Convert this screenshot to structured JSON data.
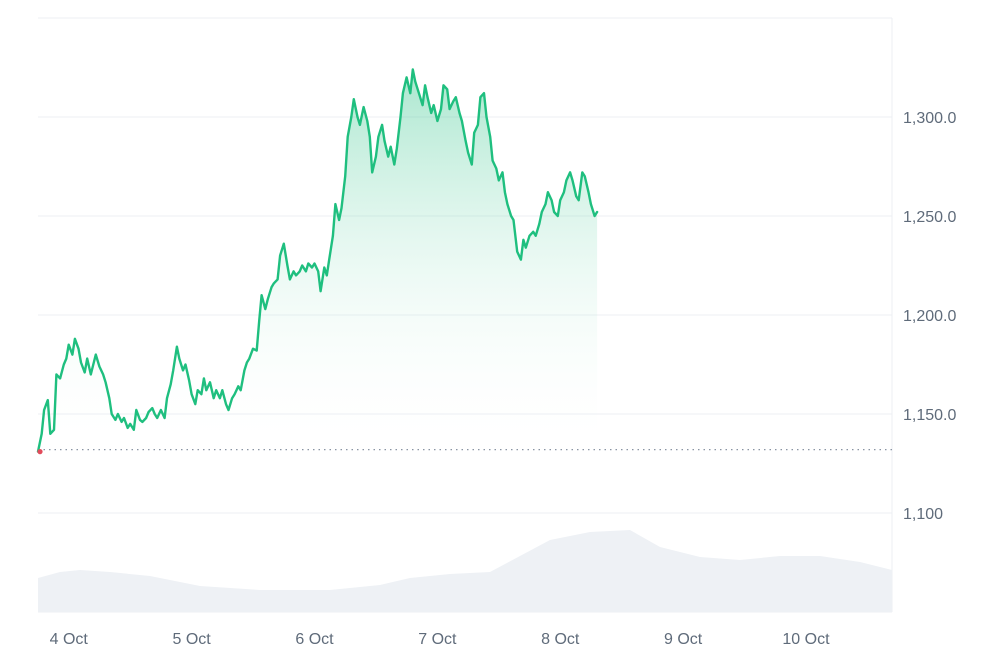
{
  "colors": {
    "line": "#1fbf7f",
    "area_top": "#1fbf7f",
    "area_bottom": "#ffffff",
    "grid": "#eceff3",
    "volume": "#eef1f5",
    "start_dot": "#e24b5b",
    "baseline": "#8a94a3",
    "tick_text": "#5f6b7a"
  },
  "chart_data": {
    "type": "area",
    "title": "",
    "xlabel": "",
    "ylabel": "",
    "x_tick_labels": [
      "4 Oct",
      "5 Oct",
      "6 Oct",
      "7 Oct",
      "8 Oct",
      "9 Oct",
      "10 Oct"
    ],
    "x_range_days": [
      3.75,
      10.7
    ],
    "y_tick_labels": [
      "1,300.0",
      "1,250.0",
      "1,200.0",
      "1,150.0",
      "1,100"
    ],
    "y_tick_values": [
      1300,
      1250,
      1200,
      1150,
      1100
    ],
    "ylim": [
      1050,
      1350
    ],
    "grid": true,
    "baseline": 1132,
    "series": [
      {
        "values": [
          [
            3.75,
            1131
          ],
          [
            3.78,
            1140
          ],
          [
            3.8,
            1152
          ],
          [
            3.83,
            1157
          ],
          [
            3.85,
            1140
          ],
          [
            3.88,
            1142
          ],
          [
            3.9,
            1170
          ],
          [
            3.93,
            1168
          ],
          [
            3.96,
            1175
          ],
          [
            3.98,
            1178
          ],
          [
            4.0,
            1185
          ],
          [
            4.03,
            1180
          ],
          [
            4.05,
            1188
          ],
          [
            4.08,
            1183
          ],
          [
            4.1,
            1176
          ],
          [
            4.13,
            1171
          ],
          [
            4.15,
            1178
          ],
          [
            4.18,
            1170
          ],
          [
            4.2,
            1175
          ],
          [
            4.22,
            1180
          ],
          [
            4.25,
            1174
          ],
          [
            4.28,
            1170
          ],
          [
            4.3,
            1166
          ],
          [
            4.33,
            1158
          ],
          [
            4.35,
            1150
          ],
          [
            4.38,
            1147
          ],
          [
            4.4,
            1150
          ],
          [
            4.43,
            1146
          ],
          [
            4.45,
            1148
          ],
          [
            4.48,
            1143
          ],
          [
            4.5,
            1145
          ],
          [
            4.53,
            1142
          ],
          [
            4.55,
            1152
          ],
          [
            4.58,
            1147
          ],
          [
            4.6,
            1146
          ],
          [
            4.63,
            1148
          ],
          [
            4.65,
            1151
          ],
          [
            4.68,
            1153
          ],
          [
            4.7,
            1150
          ],
          [
            4.72,
            1148
          ],
          [
            4.75,
            1152
          ],
          [
            4.78,
            1148
          ],
          [
            4.8,
            1158
          ],
          [
            4.83,
            1165
          ],
          [
            4.85,
            1172
          ],
          [
            4.88,
            1184
          ],
          [
            4.9,
            1178
          ],
          [
            4.93,
            1172
          ],
          [
            4.95,
            1175
          ],
          [
            4.98,
            1167
          ],
          [
            5.0,
            1160
          ],
          [
            5.03,
            1155
          ],
          [
            5.05,
            1162
          ],
          [
            5.08,
            1160
          ],
          [
            5.1,
            1168
          ],
          [
            5.12,
            1162
          ],
          [
            5.15,
            1166
          ],
          [
            5.18,
            1158
          ],
          [
            5.2,
            1162
          ],
          [
            5.23,
            1158
          ],
          [
            5.25,
            1162
          ],
          [
            5.28,
            1155
          ],
          [
            5.3,
            1152
          ],
          [
            5.33,
            1158
          ],
          [
            5.35,
            1160
          ],
          [
            5.38,
            1164
          ],
          [
            5.4,
            1162
          ],
          [
            5.43,
            1172
          ],
          [
            5.45,
            1176
          ],
          [
            5.47,
            1178
          ],
          [
            5.5,
            1183
          ],
          [
            5.53,
            1182
          ],
          [
            5.55,
            1197
          ],
          [
            5.57,
            1210
          ],
          [
            5.6,
            1203
          ],
          [
            5.62,
            1208
          ],
          [
            5.65,
            1214
          ],
          [
            5.67,
            1216
          ],
          [
            5.7,
            1218
          ],
          [
            5.72,
            1230
          ],
          [
            5.75,
            1236
          ],
          [
            5.78,
            1225
          ],
          [
            5.8,
            1218
          ],
          [
            5.83,
            1222
          ],
          [
            5.85,
            1220
          ],
          [
            5.88,
            1222
          ],
          [
            5.9,
            1225
          ],
          [
            5.93,
            1222
          ],
          [
            5.95,
            1226
          ],
          [
            5.98,
            1224
          ],
          [
            6.0,
            1226
          ],
          [
            6.03,
            1222
          ],
          [
            6.05,
            1212
          ],
          [
            6.08,
            1224
          ],
          [
            6.1,
            1220
          ],
          [
            6.12,
            1228
          ],
          [
            6.15,
            1240
          ],
          [
            6.17,
            1256
          ],
          [
            6.2,
            1248
          ],
          [
            6.22,
            1254
          ],
          [
            6.25,
            1270
          ],
          [
            6.27,
            1290
          ],
          [
            6.3,
            1300
          ],
          [
            6.32,
            1309
          ],
          [
            6.35,
            1300
          ],
          [
            6.37,
            1296
          ],
          [
            6.4,
            1305
          ],
          [
            6.43,
            1298
          ],
          [
            6.45,
            1290
          ],
          [
            6.47,
            1272
          ],
          [
            6.5,
            1280
          ],
          [
            6.52,
            1290
          ],
          [
            6.55,
            1296
          ],
          [
            6.57,
            1288
          ],
          [
            6.6,
            1280
          ],
          [
            6.62,
            1285
          ],
          [
            6.65,
            1276
          ],
          [
            6.67,
            1284
          ],
          [
            6.7,
            1300
          ],
          [
            6.72,
            1312
          ],
          [
            6.75,
            1320
          ],
          [
            6.78,
            1312
          ],
          [
            6.8,
            1324
          ],
          [
            6.82,
            1318
          ],
          [
            6.85,
            1312
          ],
          [
            6.88,
            1306
          ],
          [
            6.9,
            1316
          ],
          [
            6.92,
            1310
          ],
          [
            6.95,
            1302
          ],
          [
            6.97,
            1306
          ],
          [
            7.0,
            1298
          ],
          [
            7.03,
            1304
          ],
          [
            7.05,
            1316
          ],
          [
            7.08,
            1314
          ],
          [
            7.1,
            1304
          ],
          [
            7.13,
            1308
          ],
          [
            7.15,
            1310
          ],
          [
            7.18,
            1302
          ],
          [
            7.2,
            1298
          ],
          [
            7.23,
            1288
          ],
          [
            7.25,
            1282
          ],
          [
            7.28,
            1276
          ],
          [
            7.3,
            1292
          ],
          [
            7.33,
            1296
          ],
          [
            7.35,
            1310
          ],
          [
            7.38,
            1312
          ],
          [
            7.4,
            1300
          ],
          [
            7.43,
            1290
          ],
          [
            7.45,
            1278
          ],
          [
            7.48,
            1274
          ],
          [
            7.5,
            1268
          ],
          [
            7.53,
            1272
          ],
          [
            7.55,
            1262
          ],
          [
            7.57,
            1256
          ],
          [
            7.6,
            1250
          ],
          [
            7.62,
            1248
          ],
          [
            7.65,
            1232
          ],
          [
            7.68,
            1228
          ],
          [
            7.7,
            1238
          ],
          [
            7.72,
            1234
          ],
          [
            7.75,
            1240
          ],
          [
            7.78,
            1242
          ],
          [
            7.8,
            1240
          ],
          [
            7.83,
            1246
          ],
          [
            7.85,
            1252
          ],
          [
            7.88,
            1256
          ],
          [
            7.9,
            1262
          ],
          [
            7.93,
            1258
          ],
          [
            7.95,
            1252
          ],
          [
            7.98,
            1250
          ],
          [
            8.0,
            1258
          ],
          [
            8.03,
            1262
          ],
          [
            8.05,
            1268
          ],
          [
            8.08,
            1272
          ],
          [
            8.1,
            1268
          ],
          [
            8.13,
            1260
          ],
          [
            8.15,
            1258
          ],
          [
            8.18,
            1272
          ],
          [
            8.2,
            1270
          ],
          [
            8.23,
            1262
          ],
          [
            8.25,
            1256
          ],
          [
            8.28,
            1250
          ],
          [
            8.3,
            1252
          ]
        ]
      }
    ]
  }
}
